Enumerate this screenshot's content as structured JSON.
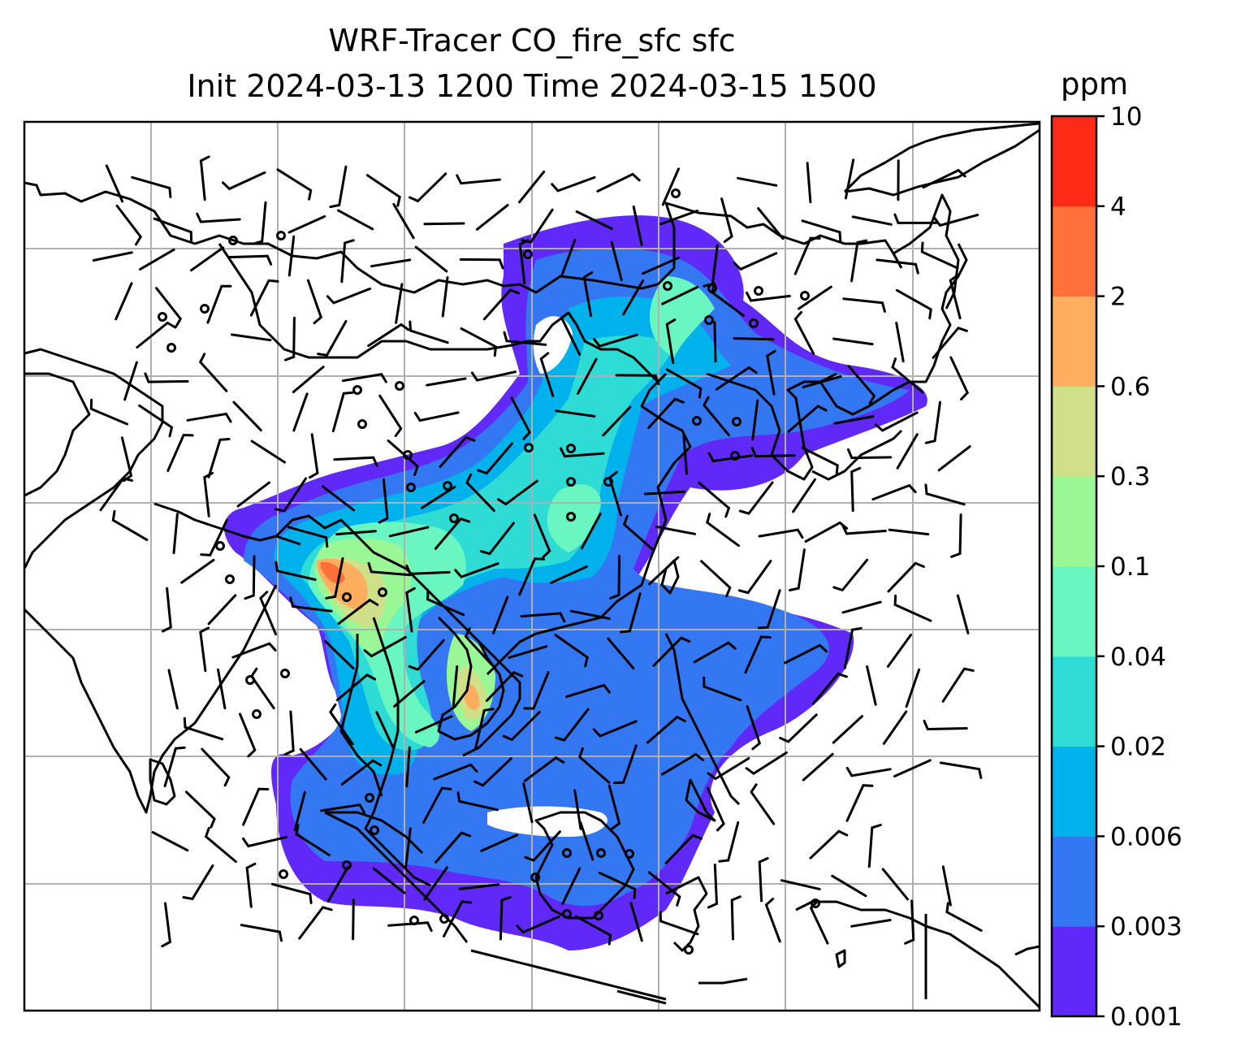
{
  "title": {
    "line1": "WRF-Tracer CO_fire_sfc sfc",
    "line2": "Init 2024-03-13 1200 Time 2024-03-15 1500"
  },
  "colorbar": {
    "unit": "ppm",
    "levels": [
      "0.001",
      "0.003",
      "0.006",
      "0.02",
      "0.04",
      "0.1",
      "0.3",
      "0.6",
      "2",
      "4",
      "10"
    ],
    "colors": [
      "#6029f7",
      "#3477f2",
      "#00b2ec",
      "#2edbd5",
      "#6af6c0",
      "#9af795",
      "#cfe089",
      "#ffae5f",
      "#ff7138",
      "#ff2b16"
    ]
  },
  "map": {
    "land_color": "#ffffff",
    "coastline_color": "#000000",
    "gridline_color": "#b0b0b0",
    "wind_barb_color": "#000000"
  }
}
